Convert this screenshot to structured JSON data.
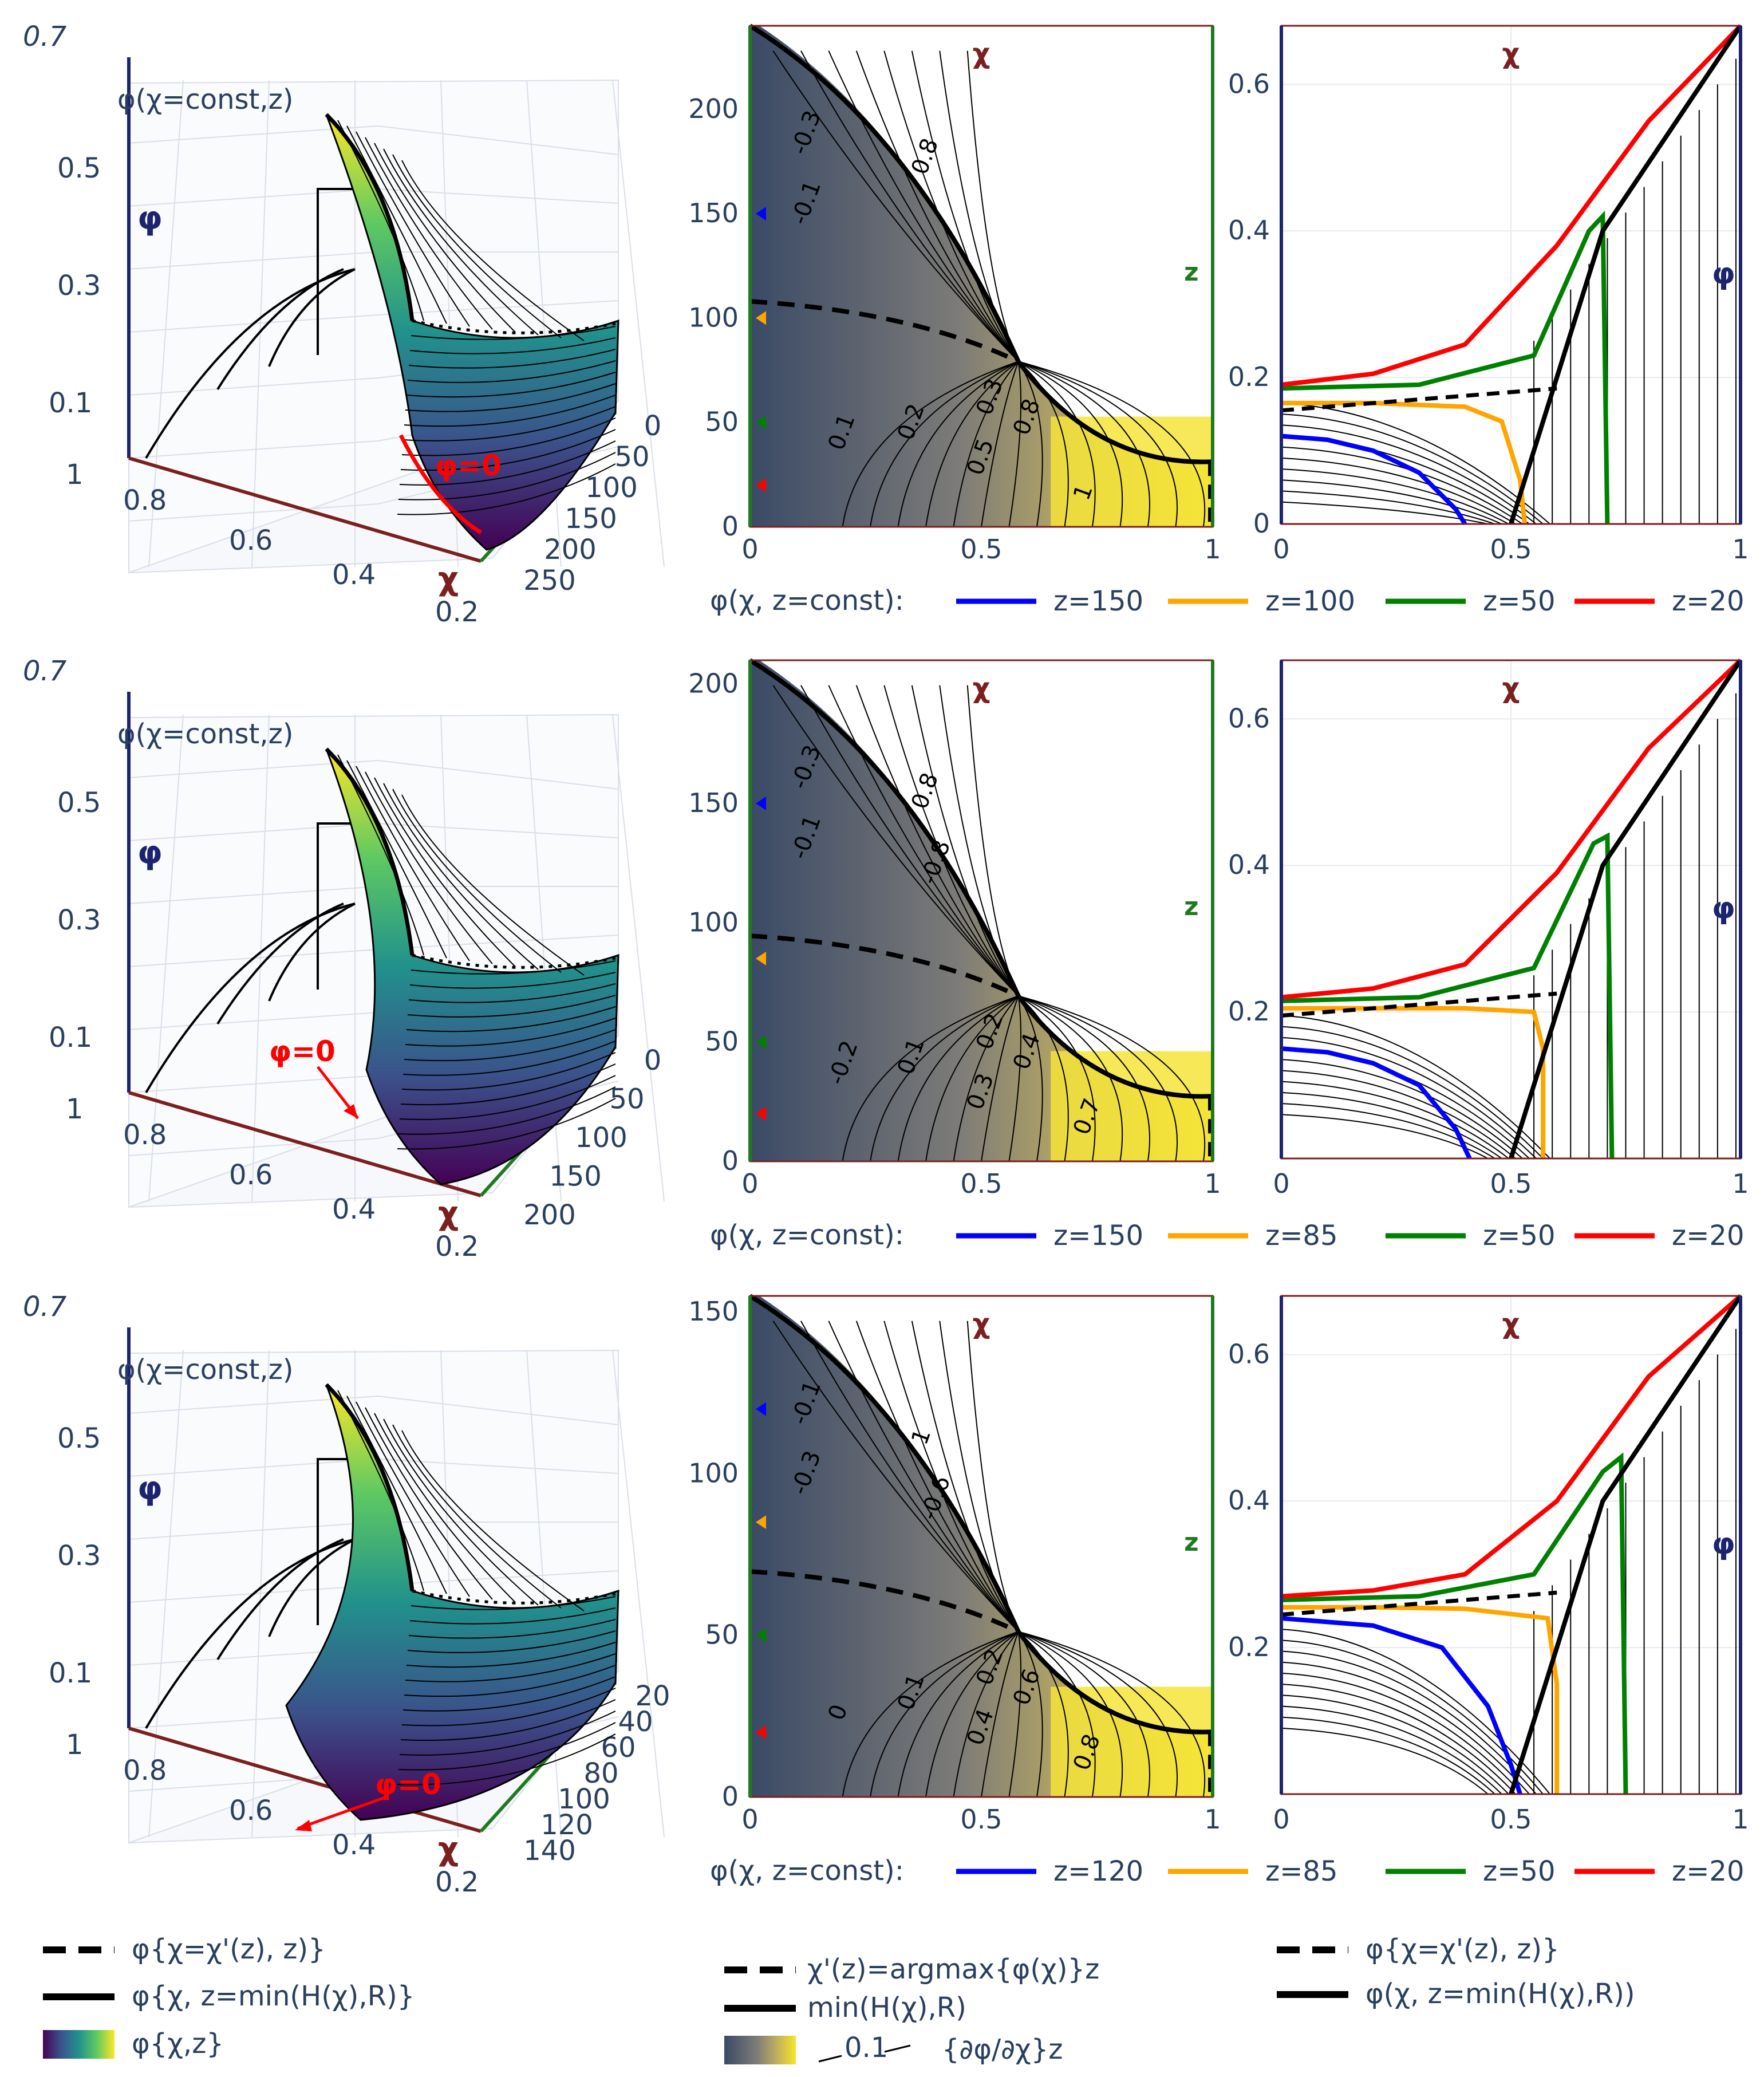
{
  "colors": {
    "chi_axis": "#7b1f1f",
    "z_axis": "#1f7a1f",
    "phi_axis": "#1c2470",
    "text": "#2a3f5f",
    "annotation": "#ff0000",
    "z150": "#0000ff",
    "z100": "#ffa500",
    "z50": "#008000",
    "z20": "#ff0000"
  },
  "labels": {
    "chi": "χ",
    "z": "z",
    "phi": "φ",
    "phi_chi_const": "φ(χ=const,z)",
    "phi_zero": "φ=0",
    "legend_prefix": "φ(χ, z=const):"
  },
  "rows": [
    {
      "surface3d": {
        "phi_ticks": [
          "0.1",
          "0.3",
          "0.5",
          "0.7"
        ],
        "chi_ticks": [
          "1",
          "0.8",
          "0.6",
          "0.4",
          "0.2"
        ],
        "z_ticks": [
          "0",
          "50",
          "100",
          "150",
          "200",
          "250"
        ]
      },
      "contour": {
        "x_ticks": [
          "0",
          "0.5",
          "1"
        ],
        "y_ticks": [
          "0",
          "50",
          "100",
          "150",
          "200"
        ],
        "ymax": 240,
        "contour_labels": [
          "-0.3",
          "-0.1",
          "0.1",
          "0.2",
          "0.3",
          "0.5",
          "0.8",
          "1",
          "0.8"
        ]
      },
      "phi_profile": {
        "x_ticks": [
          "0",
          "0.5",
          "1"
        ],
        "y_ticks": [
          "0",
          "0.2",
          "0.4",
          "0.6"
        ]
      },
      "legend": [
        "z=150",
        "z=100",
        "z=50",
        "z=20"
      ]
    },
    {
      "surface3d": {
        "phi_ticks": [
          "0.1",
          "0.3",
          "0.5",
          "0.7"
        ],
        "chi_ticks": [
          "1",
          "0.8",
          "0.6",
          "0.4",
          "0.2"
        ],
        "z_ticks": [
          "0",
          "50",
          "100",
          "150",
          "200"
        ]
      },
      "contour": {
        "x_ticks": [
          "0",
          "0.5",
          "1"
        ],
        "y_ticks": [
          "0",
          "50",
          "100",
          "150",
          "200"
        ],
        "ymax": 210,
        "contour_labels": [
          "-0.3",
          "-0.1",
          "-0.2",
          "0.1",
          "0.2",
          "0.3",
          "0.4",
          "0.7",
          "0.8",
          "-0.8"
        ]
      },
      "phi_profile": {
        "x_ticks": [
          "0",
          "0.5",
          "1"
        ],
        "y_ticks": [
          "0.2",
          "0.4",
          "0.6"
        ]
      },
      "legend": [
        "z=150",
        "z=85",
        "z=50",
        "z=20"
      ]
    },
    {
      "surface3d": {
        "phi_ticks": [
          "0.1",
          "0.3",
          "0.5",
          "0.7"
        ],
        "chi_ticks": [
          "1",
          "0.8",
          "0.6",
          "0.4",
          "0.2"
        ],
        "z_ticks": [
          "20",
          "40",
          "60",
          "80",
          "100",
          "120",
          "140"
        ]
      },
      "contour": {
        "x_ticks": [
          "0",
          "0.5",
          "1"
        ],
        "y_ticks": [
          "0",
          "50",
          "100",
          "150"
        ],
        "ymax": 155,
        "contour_labels": [
          "-0.1",
          "-0.3",
          "0",
          "0.1",
          "0.2",
          "0.4",
          "0.6",
          "0.8",
          "1",
          "-0.6"
        ]
      },
      "phi_profile": {
        "x_ticks": [
          "0",
          "0.5",
          "1"
        ],
        "y_ticks": [
          "0.2",
          "0.4",
          "0.6"
        ]
      },
      "legend": [
        "z=120",
        "z=85",
        "z=50",
        "z=20"
      ]
    }
  ],
  "bottom_legends": {
    "left": [
      "φ{χ=χ'(z), z)}",
      "φ{χ, z=min(H(χ),R)}",
      "φ{χ,z}"
    ],
    "center": [
      "χ'(z)=argmax{φ(χ)}z",
      "min(H(χ),R)",
      "0.1",
      "{∂φ/∂χ}z"
    ],
    "right": [
      "φ{χ=χ'(z), z)}",
      "φ(χ, z=min(H(χ),R))"
    ]
  },
  "chart_data": [
    {
      "type": "line",
      "title": "",
      "xlabel": "χ",
      "ylabel": "φ",
      "xlim": [
        0,
        1
      ],
      "ylim": [
        0,
        0.68
      ],
      "series": [
        {
          "name": "z=150",
          "x": [
            0,
            0.1,
            0.2,
            0.3,
            0.38,
            0.4
          ],
          "y": [
            0.12,
            0.115,
            0.1,
            0.07,
            0.02,
            0
          ]
        },
        {
          "name": "z=100",
          "x": [
            0,
            0.2,
            0.4,
            0.48,
            0.52,
            0.53
          ],
          "y": [
            0.165,
            0.165,
            0.16,
            0.14,
            0.06,
            0
          ]
        },
        {
          "name": "z=50",
          "x": [
            0,
            0.3,
            0.55,
            0.67,
            0.7,
            0.71
          ],
          "y": [
            0.185,
            0.19,
            0.23,
            0.4,
            0.42,
            0
          ]
        },
        {
          "name": "z=20",
          "x": [
            0,
            0.2,
            0.4,
            0.6,
            0.8,
            1.0
          ],
          "y": [
            0.19,
            0.205,
            0.245,
            0.38,
            0.55,
            0.68
          ]
        }
      ]
    },
    {
      "type": "line",
      "title": "",
      "xlabel": "χ",
      "ylabel": "φ",
      "xlim": [
        0,
        1
      ],
      "ylim": [
        0,
        0.68
      ],
      "series": [
        {
          "name": "z=150",
          "x": [
            0,
            0.1,
            0.2,
            0.3,
            0.38,
            0.41
          ],
          "y": [
            0.15,
            0.145,
            0.13,
            0.1,
            0.04,
            0
          ]
        },
        {
          "name": "z=85",
          "x": [
            0,
            0.2,
            0.4,
            0.55,
            0.57,
            0.57
          ],
          "y": [
            0.205,
            0.205,
            0.205,
            0.2,
            0.15,
            0
          ]
        },
        {
          "name": "z=50",
          "x": [
            0,
            0.3,
            0.55,
            0.68,
            0.71,
            0.72
          ],
          "y": [
            0.215,
            0.22,
            0.26,
            0.43,
            0.44,
            0
          ]
        },
        {
          "name": "z=20",
          "x": [
            0,
            0.2,
            0.4,
            0.6,
            0.8,
            1.0
          ],
          "y": [
            0.22,
            0.232,
            0.265,
            0.39,
            0.56,
            0.68
          ]
        }
      ]
    },
    {
      "type": "line",
      "title": "",
      "xlabel": "χ",
      "ylabel": "φ",
      "xlim": [
        0,
        1
      ],
      "ylim": [
        0,
        0.68
      ],
      "series": [
        {
          "name": "z=120",
          "x": [
            0,
            0.2,
            0.35,
            0.45,
            0.5,
            0.52
          ],
          "y": [
            0.24,
            0.23,
            0.2,
            0.12,
            0.04,
            0
          ]
        },
        {
          "name": "z=85",
          "x": [
            0,
            0.2,
            0.4,
            0.58,
            0.6,
            0.6
          ],
          "y": [
            0.255,
            0.255,
            0.253,
            0.24,
            0.15,
            0
          ]
        },
        {
          "name": "z=50",
          "x": [
            0,
            0.3,
            0.55,
            0.7,
            0.74,
            0.75
          ],
          "y": [
            0.265,
            0.27,
            0.3,
            0.44,
            0.46,
            0
          ]
        },
        {
          "name": "z=20",
          "x": [
            0,
            0.2,
            0.4,
            0.6,
            0.8,
            1.0
          ],
          "y": [
            0.27,
            0.278,
            0.3,
            0.4,
            0.57,
            0.68
          ]
        }
      ]
    }
  ]
}
